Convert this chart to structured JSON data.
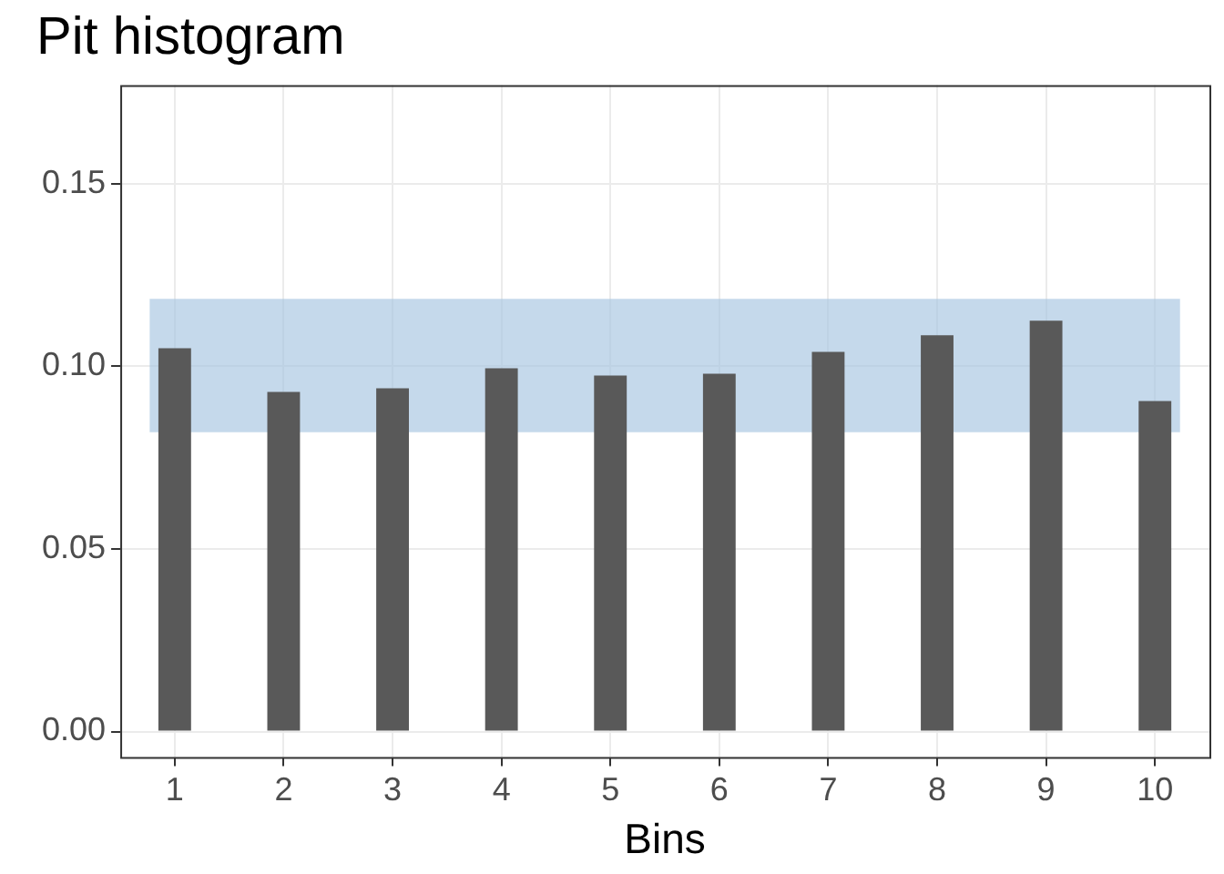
{
  "chart_data": {
    "type": "bar",
    "title": "Pit histogram",
    "xlabel": "Bins",
    "categories": [
      "1",
      "2",
      "3",
      "4",
      "5",
      "6",
      "7",
      "8",
      "9",
      "10"
    ],
    "values": [
      0.105,
      0.093,
      0.094,
      0.0995,
      0.0975,
      0.098,
      0.104,
      0.1085,
      0.1125,
      0.0905
    ],
    "color": "#595959",
    "ylim": [
      -0.007,
      0.177
    ],
    "yticks": [
      {
        "value": 0,
        "label": "0.00"
      },
      {
        "value": 0.05,
        "label": "0.05"
      },
      {
        "value": 0.1,
        "label": "0.10"
      },
      {
        "value": 0.15,
        "label": "0.15"
      }
    ],
    "bands": [
      {
        "axis": "y",
        "from": 0.082,
        "to": 0.1185,
        "color": "#a6c4e0"
      }
    ],
    "grid": true
  }
}
